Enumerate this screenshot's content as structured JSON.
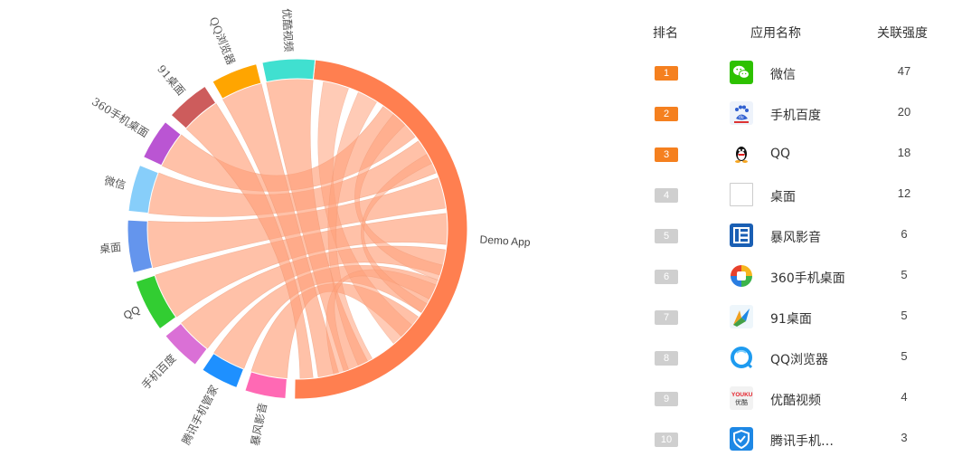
{
  "chart_data": {
    "type": "chord",
    "center_app": "Demo App",
    "segments": [
      {
        "name": "Demo App",
        "color": "#ff7f50"
      },
      {
        "name": "暴风影音",
        "color": "#ff69b4",
        "value": 6
      },
      {
        "name": "腾讯手机管家",
        "color": "#1e90ff",
        "value": 3
      },
      {
        "name": "手机百度",
        "color": "#da70d6",
        "value": 20
      },
      {
        "name": "QQ",
        "color": "#32cd32",
        "value": 18
      },
      {
        "name": "桌面",
        "color": "#6495ed",
        "value": 12
      },
      {
        "name": "微信",
        "color": "#87cefa",
        "value": 47
      },
      {
        "name": "360手机桌面",
        "color": "#ba55d3",
        "value": 5
      },
      {
        "name": "91桌面",
        "color": "#cd5c5c",
        "value": 5
      },
      {
        "name": "QQ浏览器",
        "color": "#ffa500",
        "value": 5
      },
      {
        "name": "优酷视频",
        "color": "#40e0d0",
        "value": 4
      }
    ],
    "ribbon_color": "#ffa07a"
  },
  "ranking": {
    "headers": {
      "rank": "排名",
      "app": "应用名称",
      "strength": "关联强度"
    },
    "rows": [
      {
        "rank": "1",
        "name": "微信",
        "value": "47",
        "icon": "wechat-icon",
        "top": true
      },
      {
        "rank": "2",
        "name": "手机百度",
        "value": "20",
        "icon": "baidu-icon",
        "top": true
      },
      {
        "rank": "3",
        "name": "QQ",
        "value": "18",
        "icon": "qq-penguin-icon",
        "top": true
      },
      {
        "rank": "4",
        "name": "桌面",
        "value": "12",
        "icon": "blank-icon",
        "top": false
      },
      {
        "rank": "5",
        "name": "暴风影音",
        "value": "6",
        "icon": "baofeng-icon",
        "top": false
      },
      {
        "rank": "6",
        "name": "360手机桌面",
        "value": "5",
        "icon": "360-launcher-icon",
        "top": false
      },
      {
        "rank": "7",
        "name": "91桌面",
        "value": "5",
        "icon": "91-launcher-icon",
        "top": false
      },
      {
        "rank": "8",
        "name": "QQ浏览器",
        "value": "5",
        "icon": "qq-browser-icon",
        "top": false
      },
      {
        "rank": "9",
        "name": "优酷视频",
        "value": "4",
        "icon": "youku-icon",
        "top": false
      },
      {
        "rank": "10",
        "name": "腾讯手机…",
        "value": "3",
        "icon": "tencent-guard-icon",
        "top": false
      }
    ]
  }
}
